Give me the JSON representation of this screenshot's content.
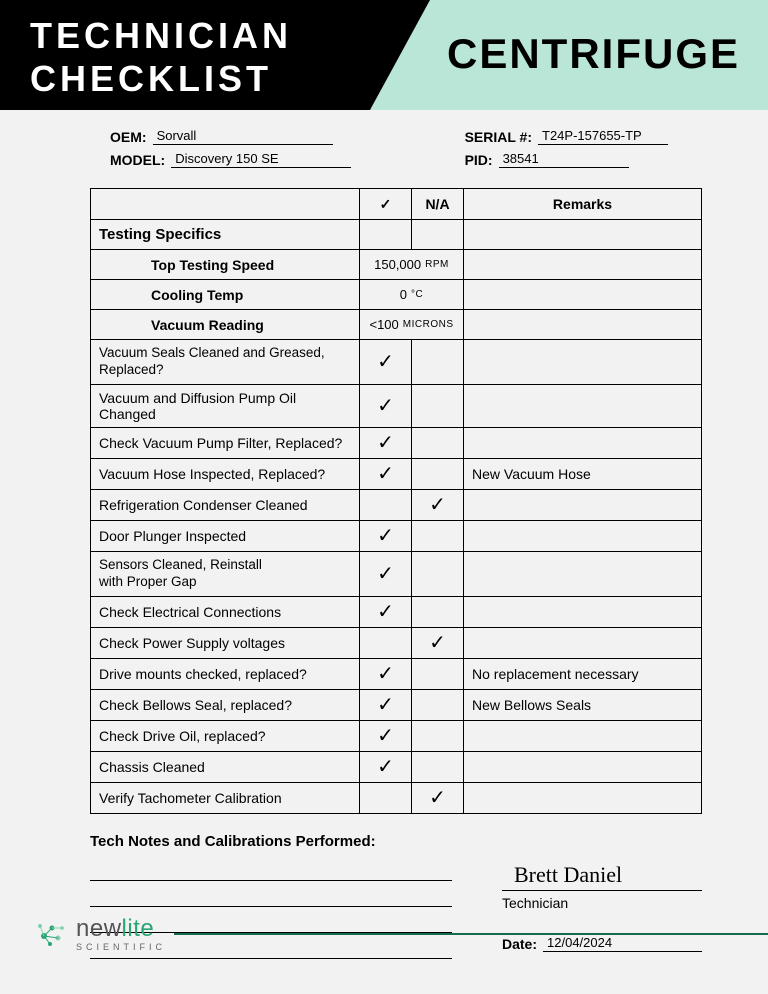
{
  "header": {
    "title_line1": "TECHNICIAN",
    "title_line2": "CHECKLIST",
    "title_right": "CENTRIFUGE",
    "black_color": "#000000",
    "mint_color": "#b9e6d6"
  },
  "info": {
    "oem_label": "OEM:",
    "oem_value": "Sorvall",
    "model_label": "MODEL:",
    "model_value": "Discovery 150 SE",
    "serial_label": "SERIAL #:",
    "serial_value": "T24P-157655-TP",
    "pid_label": "PID:",
    "pid_value": "38541"
  },
  "table": {
    "header_check": "✓",
    "header_na": "N/A",
    "header_remarks": "Remarks",
    "section_label": "Testing Specifics",
    "specs": [
      {
        "label": "Top Testing Speed",
        "value": "150,000",
        "unit": "RPM"
      },
      {
        "label": "Cooling Temp",
        "value": "0",
        "unit": "°C"
      },
      {
        "label": "Vacuum Reading",
        "value": "<100",
        "unit": "MICRONS"
      }
    ],
    "rows": [
      {
        "label": "Vacuum Seals Cleaned and Greased, Replaced?",
        "check": true,
        "na": false,
        "remarks": "",
        "twoline": true
      },
      {
        "label": "Vacuum and Diffusion Pump Oil Changed",
        "check": true,
        "na": false,
        "remarks": ""
      },
      {
        "label": "Check Vacuum Pump Filter, Replaced?",
        "check": true,
        "na": false,
        "remarks": ""
      },
      {
        "label": "Vacuum Hose Inspected, Replaced?",
        "check": true,
        "na": false,
        "remarks": "New Vacuum Hose"
      },
      {
        "label": "Refrigeration Condenser Cleaned",
        "check": false,
        "na": true,
        "remarks": ""
      },
      {
        "label": "Door Plunger Inspected",
        "check": true,
        "na": false,
        "remarks": ""
      },
      {
        "label": "Sensors Cleaned, Reinstall\nwith Proper Gap",
        "check": true,
        "na": false,
        "remarks": "",
        "twoline": true
      },
      {
        "label": "Check Electrical Connections",
        "check": true,
        "na": false,
        "remarks": ""
      },
      {
        "label": "Check Power Supply voltages",
        "check": false,
        "na": true,
        "remarks": ""
      },
      {
        "label": "Drive mounts checked, replaced?",
        "check": true,
        "na": false,
        "remarks": "No replacement necessary"
      },
      {
        "label": "Check Bellows Seal, replaced?",
        "check": true,
        "na": false,
        "remarks": "New Bellows Seals"
      },
      {
        "label": "Check Drive Oil, replaced?",
        "check": true,
        "na": false,
        "remarks": ""
      },
      {
        "label": "Chassis Cleaned",
        "check": true,
        "na": false,
        "remarks": ""
      },
      {
        "label": "Verify Tachometer Calibration",
        "check": false,
        "na": true,
        "remarks": ""
      }
    ]
  },
  "notes": {
    "title": "Tech Notes and Calibrations Performed:",
    "signature": "Brett Daniel",
    "sig_label": "Technician",
    "date_label": "Date:",
    "date_value": "12/04/2024"
  },
  "footer": {
    "logo_new": "new",
    "logo_lite": "lite",
    "logo_sub": "SCIENTIFIC",
    "line_color": "#146b52",
    "logo_accent": "#2aa574"
  }
}
